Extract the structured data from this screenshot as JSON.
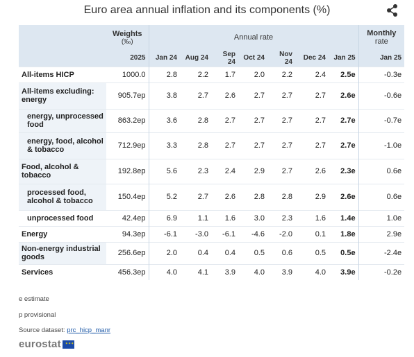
{
  "title": "Euro area annual inflation and its components (%)",
  "share_icon": "share-icon",
  "header": {
    "weights": "Weights",
    "weights_unit": "(‰)",
    "annual_rate": "Annual rate",
    "monthly_rate_1": "Monthly",
    "monthly_rate_2": "rate",
    "year": "2025",
    "months": [
      "Jan 24",
      "Aug 24",
      "Sep 24",
      "Oct 24",
      "Nov 24",
      "Dec 24",
      "Jan 25"
    ],
    "monthly_month": "Jan 25"
  },
  "rows": [
    {
      "label": "All-items HICP",
      "weight": "1000.0",
      "vals": [
        "2.8",
        "2.2",
        "1.7",
        "2.0",
        "2.2",
        "2.4",
        "2.5e"
      ],
      "monthly": "-0.3e"
    },
    {
      "label": "All-items excluding:",
      "label2": "energy",
      "weight": "905.7ep",
      "vals": [
        "3.8",
        "2.7",
        "2.6",
        "2.7",
        "2.7",
        "2.7",
        "2.6e"
      ],
      "monthly": "-0.6e"
    },
    {
      "label": "energy, unprocessed",
      "label2": "food",
      "weight": "863.2ep",
      "vals": [
        "3.6",
        "2.8",
        "2.7",
        "2.7",
        "2.7",
        "2.7",
        "2.7e"
      ],
      "monthly": "-0.7e"
    },
    {
      "label": "energy, food, alcohol",
      "label2": "& tobacco",
      "weight": "712.9ep",
      "vals": [
        "3.3",
        "2.8",
        "2.7",
        "2.7",
        "2.7",
        "2.7",
        "2.7e"
      ],
      "monthly": "-1.0e"
    },
    {
      "label": "Food, alcohol &",
      "label2": "tobacco",
      "weight": "192.8ep",
      "vals": [
        "5.6",
        "2.3",
        "2.4",
        "2.9",
        "2.7",
        "2.6",
        "2.3e"
      ],
      "monthly": "0.6e"
    },
    {
      "label": "processed food,",
      "label2": "alcohol & tobacco",
      "weight": "150.4ep",
      "vals": [
        "5.2",
        "2.7",
        "2.6",
        "2.8",
        "2.8",
        "2.9",
        "2.6e"
      ],
      "monthly": "0.6e"
    },
    {
      "label": "unprocessed food",
      "weight": "42.4ep",
      "vals": [
        "6.9",
        "1.1",
        "1.6",
        "3.0",
        "2.3",
        "1.6",
        "1.4e"
      ],
      "monthly": "1.0e"
    },
    {
      "label": "Energy",
      "weight": "94.3ep",
      "vals": [
        "-6.1",
        "-3.0",
        "-6.1",
        "-4.6",
        "-2.0",
        "0.1",
        "1.8e"
      ],
      "monthly": "2.9e"
    },
    {
      "label": "Non-energy industrial",
      "label2": "goods",
      "weight": "256.6ep",
      "vals": [
        "2.0",
        "0.4",
        "0.4",
        "0.5",
        "0.6",
        "0.5",
        "0.5e"
      ],
      "monthly": "-2.4e"
    },
    {
      "label": "Services",
      "weight": "456.3ep",
      "vals": [
        "4.0",
        "4.1",
        "3.9",
        "4.0",
        "3.9",
        "4.0",
        "3.9e"
      ],
      "monthly": "-0.2e"
    }
  ],
  "footer": {
    "estimate": "e estimate",
    "provisional": "p provisional",
    "source_label": "Source dataset: ",
    "source_link": "prc_hicp_manr",
    "logo": "eurostat"
  },
  "colors": {
    "header_bg": "#dde7f1",
    "label_bg": "#eef3f8",
    "link": "#1f5aa8"
  }
}
